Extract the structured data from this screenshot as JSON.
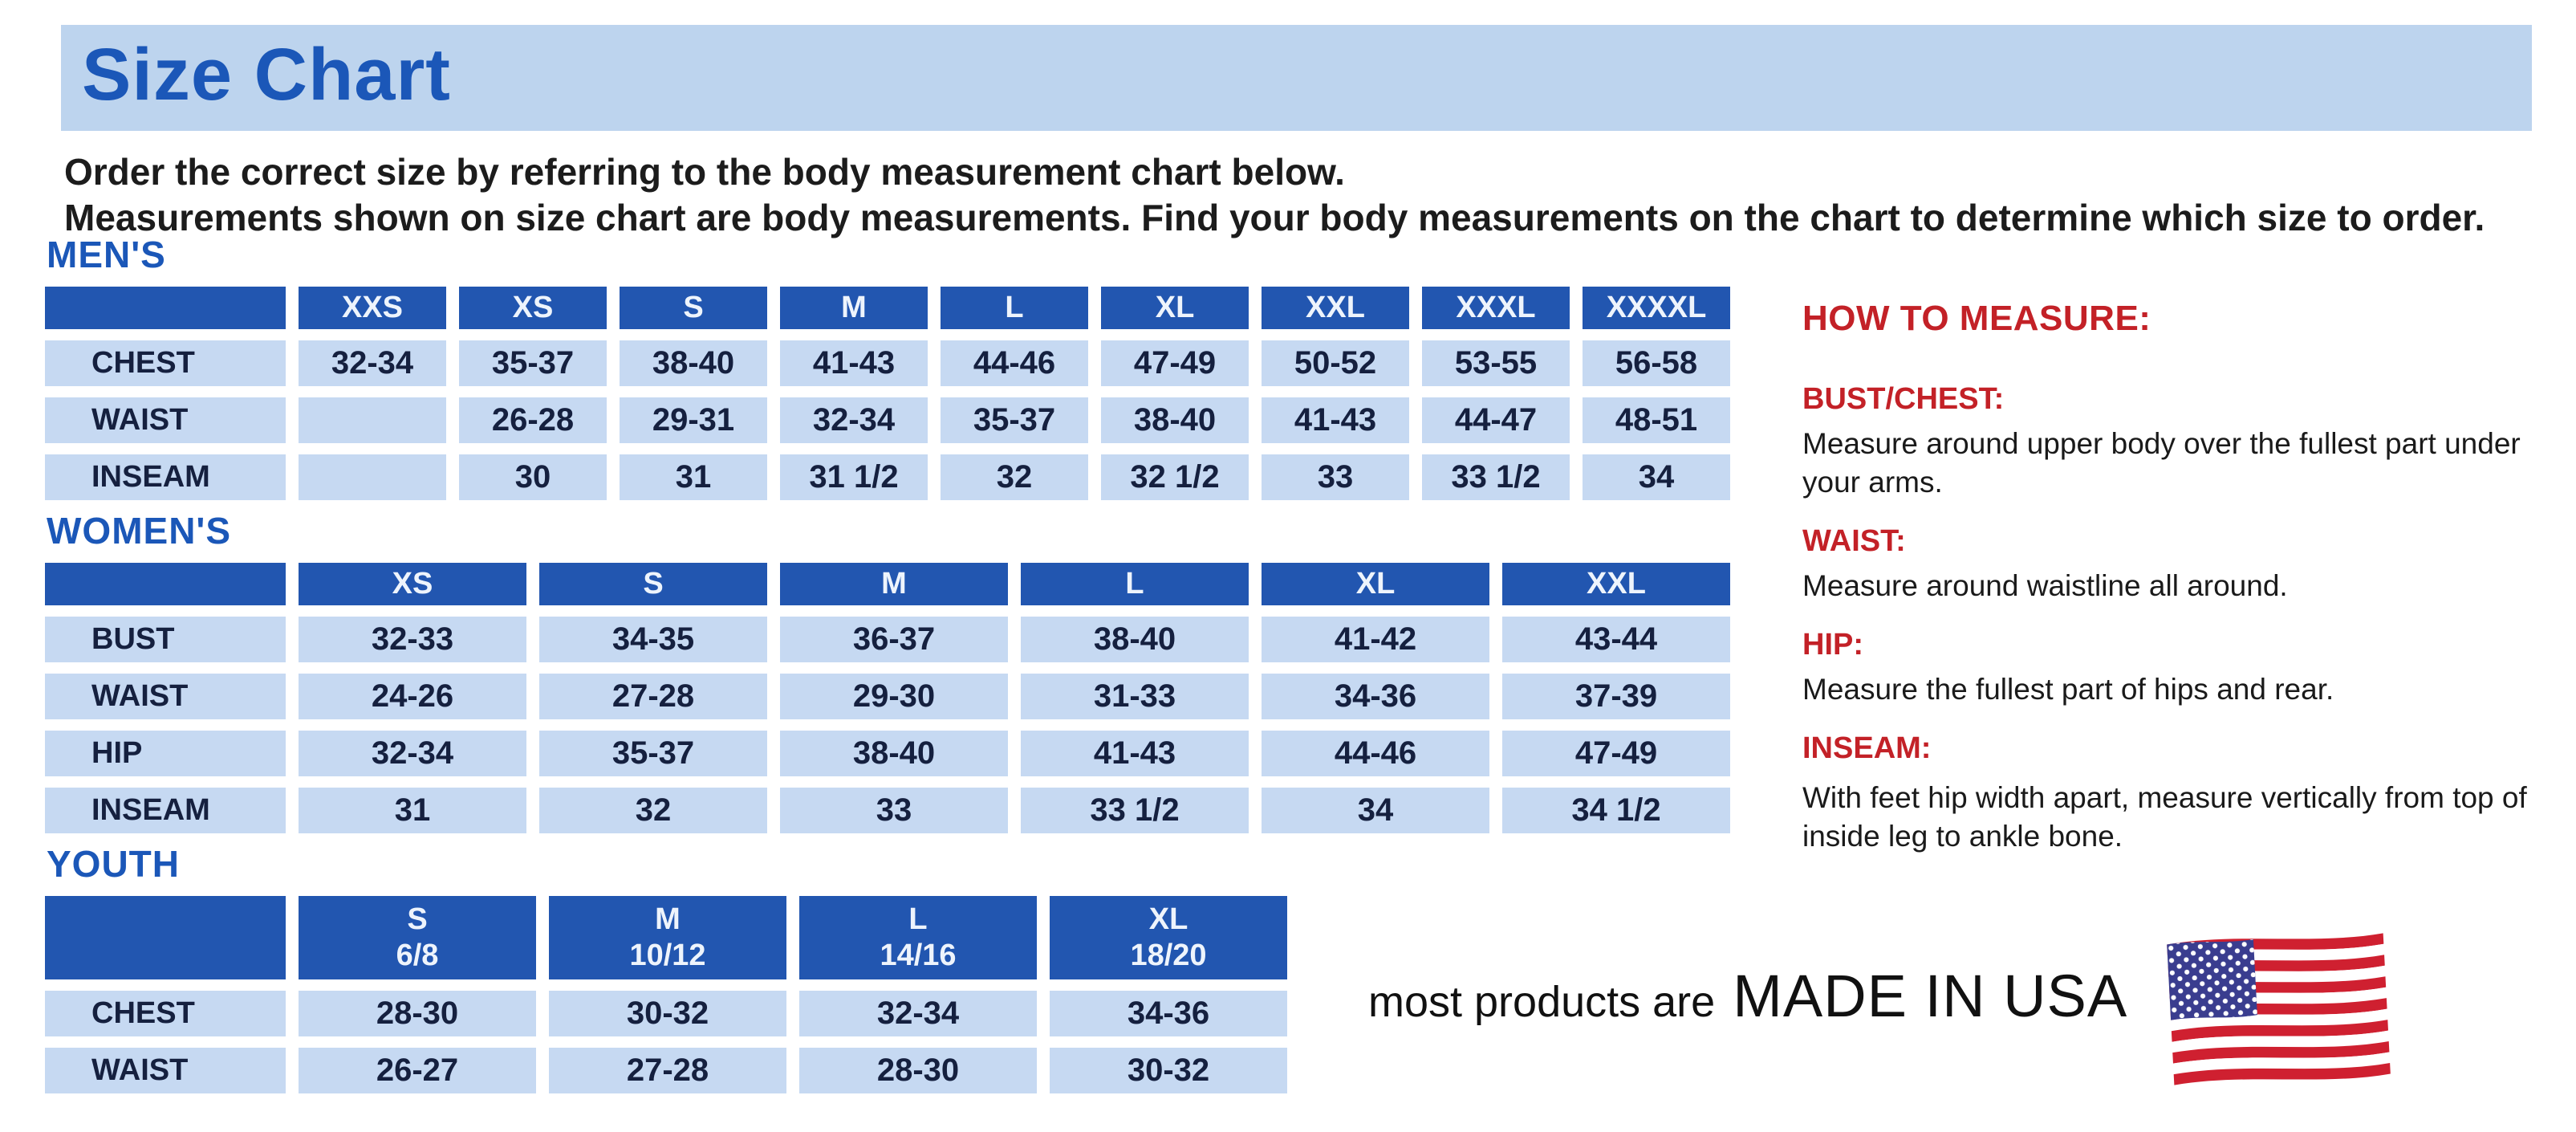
{
  "page": {
    "title": "Size Chart",
    "intro_line1": "Order the correct size by referring to the body measurement chart below.",
    "intro_line2": "Measurements shown on size chart are body measurements.  Find your body measurements on the chart to determine which size to order."
  },
  "colors": {
    "banner_blue": "#bdd4ee",
    "title_blue": "#1b57b8",
    "header_blue": "#2256b0",
    "cell_blue": "#c6d9f2",
    "navy": "#15203f",
    "red": "#c32127",
    "flag_red": "#cf2030",
    "flag_blue": "#3a3d8f"
  },
  "tables": {
    "mens": {
      "title": "MEN'S",
      "sizes": [
        "XXS",
        "XS",
        "S",
        "M",
        "L",
        "XL",
        "XXL",
        "XXXL",
        "XXXXL"
      ],
      "rows": [
        {
          "label": "CHEST",
          "values": [
            "32-34",
            "35-37",
            "38-40",
            "41-43",
            "44-46",
            "47-49",
            "50-52",
            "53-55",
            "56-58"
          ]
        },
        {
          "label": "WAIST",
          "values": [
            "",
            "26-28",
            "29-31",
            "32-34",
            "35-37",
            "38-40",
            "41-43",
            "44-47",
            "48-51"
          ]
        },
        {
          "label": "INSEAM",
          "values": [
            "",
            "30",
            "31",
            "31 1/2",
            "32",
            "32 1/2",
            "33",
            "33 1/2",
            "34"
          ]
        }
      ]
    },
    "womens": {
      "title": "WOMEN'S",
      "sizes": [
        "XS",
        "S",
        "M",
        "L",
        "XL",
        "XXL"
      ],
      "rows": [
        {
          "label": "BUST",
          "values": [
            "32-33",
            "34-35",
            "36-37",
            "38-40",
            "41-42",
            "43-44"
          ]
        },
        {
          "label": "WAIST",
          "values": [
            "24-26",
            "27-28",
            "29-30",
            "31-33",
            "34-36",
            "37-39"
          ]
        },
        {
          "label": "HIP",
          "values": [
            "32-34",
            "35-37",
            "38-40",
            "41-43",
            "44-46",
            "47-49"
          ]
        },
        {
          "label": "INSEAM",
          "values": [
            "31",
            "32",
            "33",
            "33 1/2",
            "34",
            "34 1/2"
          ]
        }
      ]
    },
    "youth": {
      "title": "YOUTH",
      "sizes": [
        "S\n6/8",
        "M\n10/12",
        "L\n14/16",
        "XL\n18/20"
      ],
      "rows": [
        {
          "label": "CHEST",
          "values": [
            "28-30",
            "30-32",
            "32-34",
            "34-36"
          ]
        },
        {
          "label": "WAIST",
          "values": [
            "26-27",
            "27-28",
            "28-30",
            "30-32"
          ]
        }
      ]
    }
  },
  "how_to_measure": {
    "heading": "HOW TO MEASURE:",
    "sections": [
      {
        "label": "BUST/CHEST:",
        "text": "Measure around upper body over the fullest part under your arms."
      },
      {
        "label": "WAIST:",
        "text": "Measure around waistline all around."
      },
      {
        "label": "HIP:",
        "text": "Measure the fullest part of hips and rear."
      },
      {
        "label": "INSEAM:",
        "text": "With feet hip width apart, measure vertically from top of inside leg to ankle bone."
      }
    ]
  },
  "footer": {
    "made_in_prefix": "most products are",
    "made_in": "MADE IN USA",
    "flag_icon": "usa-flag-icon"
  }
}
